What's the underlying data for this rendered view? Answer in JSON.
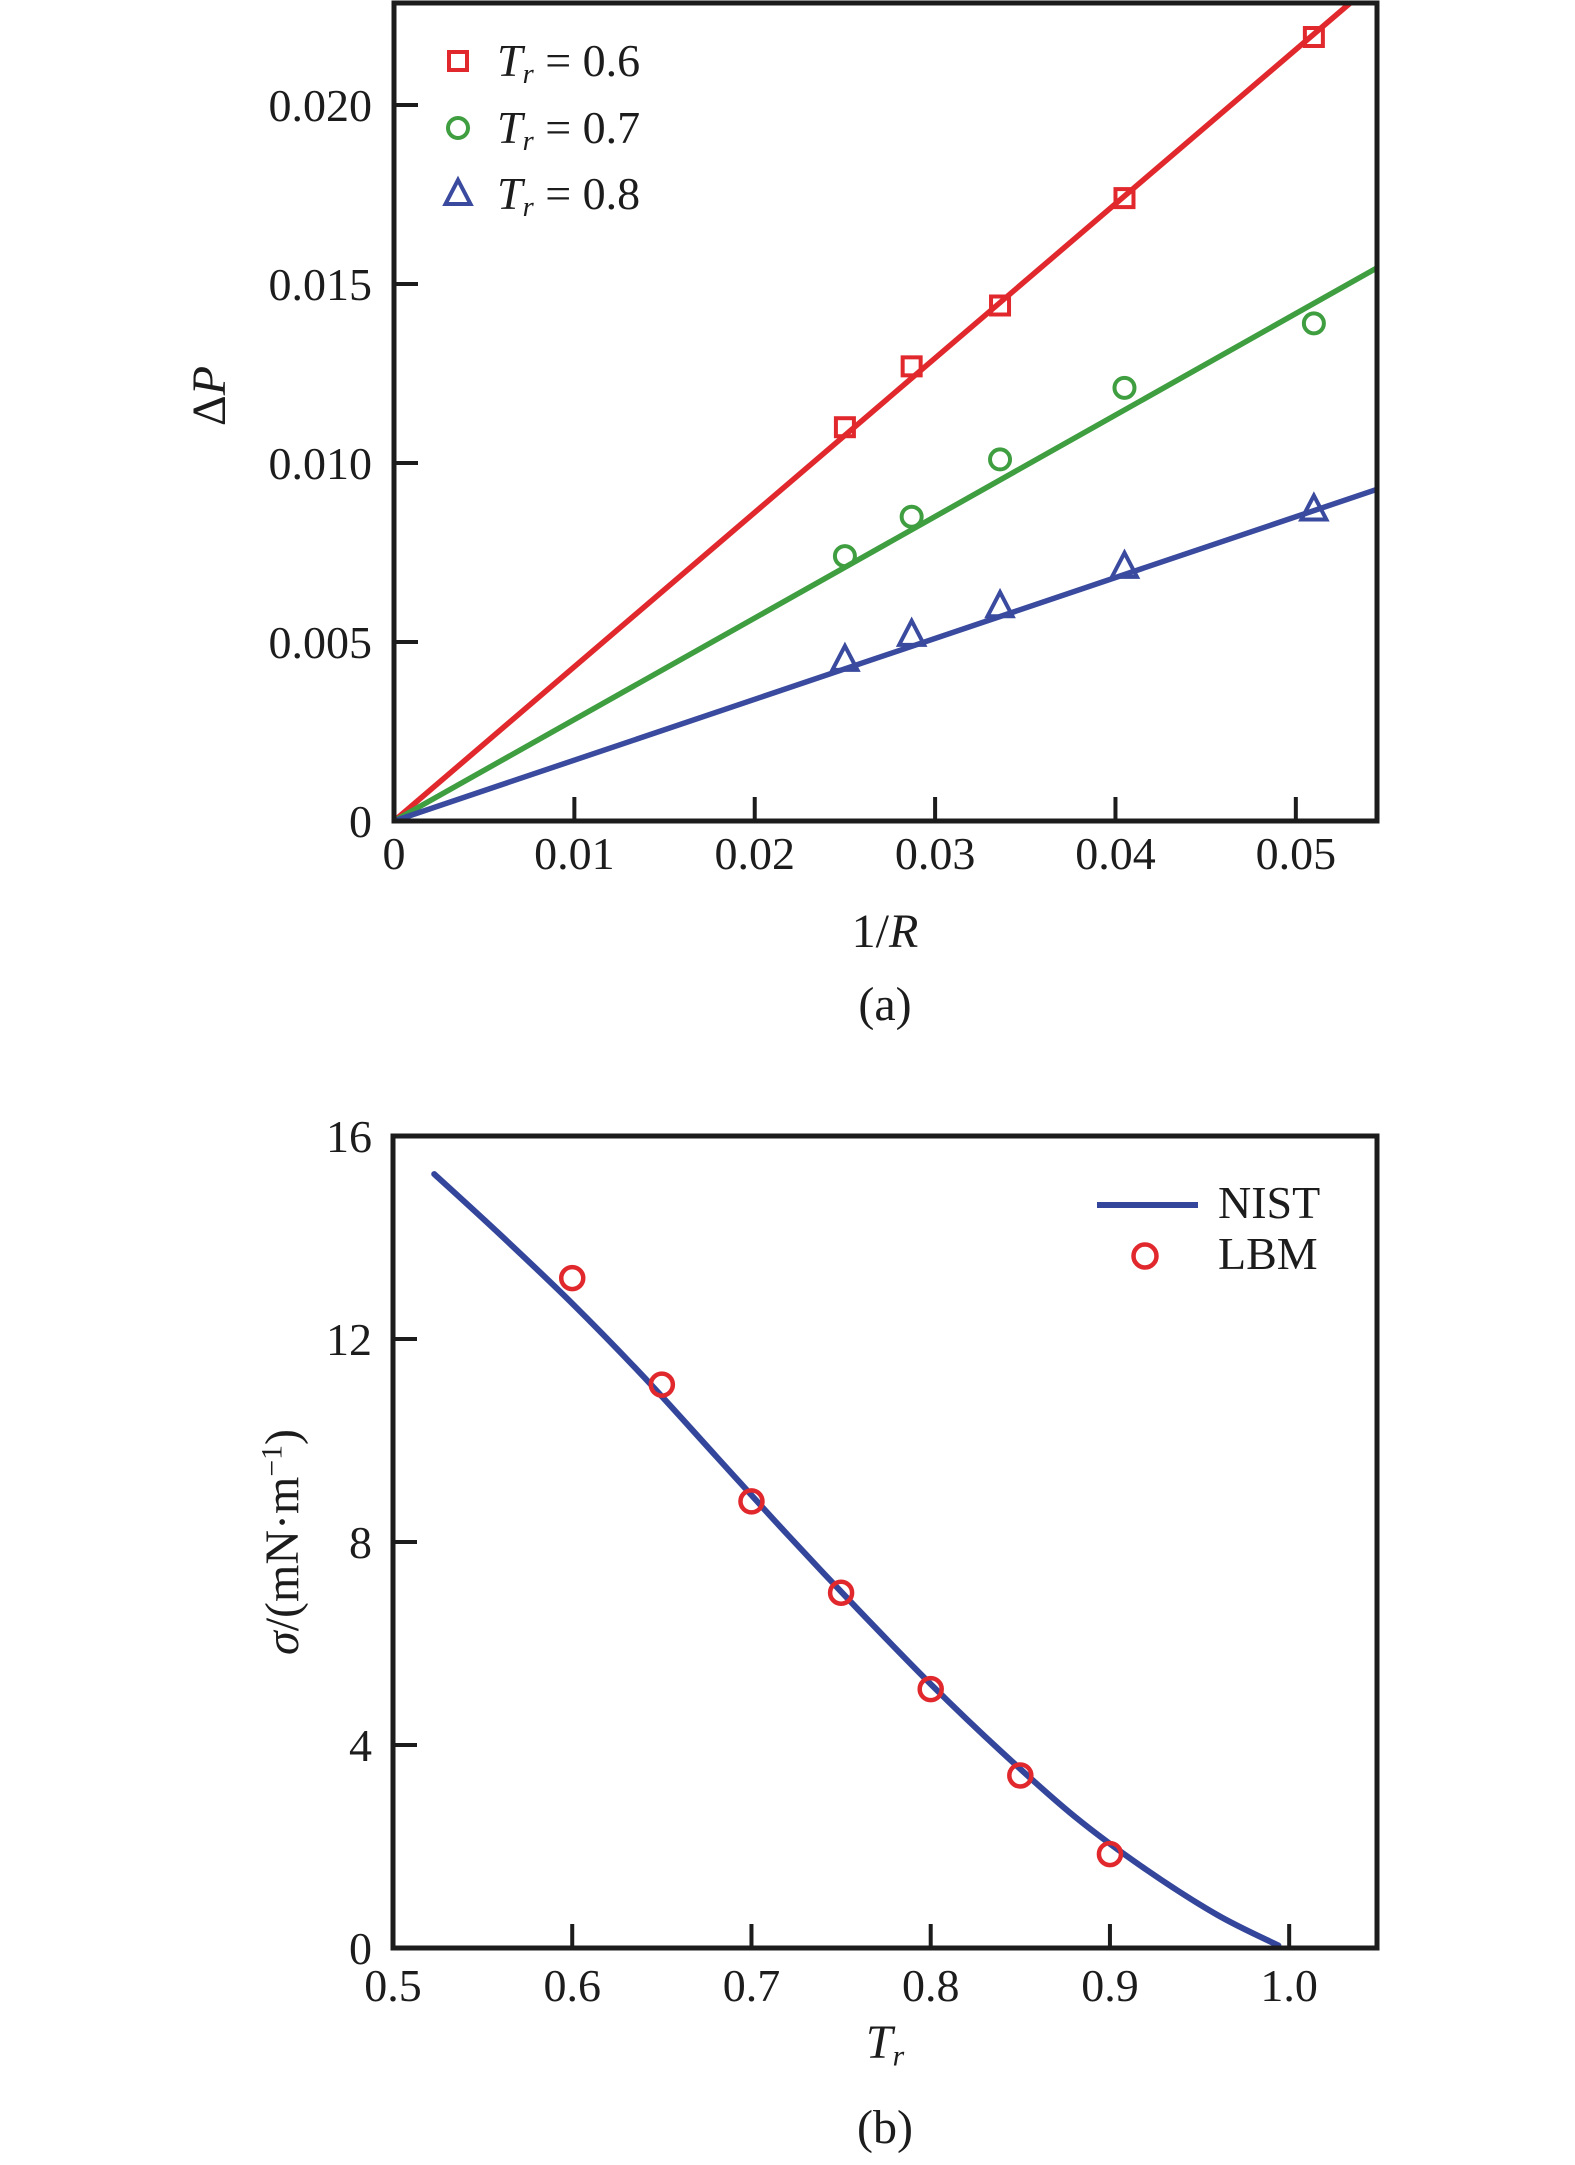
{
  "figure": {
    "background": "#ffffff",
    "text_color": "#1c1c1c",
    "axis_color": "#1c1c1c"
  },
  "chart_data": [
    {
      "id": "a",
      "type": "scatter",
      "caption": "(a)",
      "xlabel": "1/R",
      "xlabel_parts": {
        "plain": "1/",
        "italic": "R"
      },
      "ylabel": "ΔP",
      "ylabel_parts": {
        "plain": "Δ",
        "italic": "P"
      },
      "xlim": [
        0,
        0.0545
      ],
      "ylim": [
        0,
        0.02285
      ],
      "grid": false,
      "legend_position": "top-left",
      "xticks": {
        "values": [
          0,
          0.01,
          0.02,
          0.03,
          0.04,
          0.05
        ],
        "labels": [
          "0",
          "0.01",
          "0.02",
          "0.03",
          "0.04",
          "0.05"
        ]
      },
      "yticks": {
        "values": [
          0,
          0.005,
          0.01,
          0.015,
          0.02
        ],
        "labels": [
          "0",
          "0.005",
          "0.010",
          "0.015",
          "0.020"
        ]
      },
      "series": [
        {
          "label": "Tr = 0.6",
          "label_parts": {
            "it": "T",
            "sub": "r",
            "rest": " = 0.6"
          },
          "marker": "square",
          "color": "#e1282d",
          "points": [
            [
              0.025,
              0.011
            ],
            [
              0.0287,
              0.0127
            ],
            [
              0.0336,
              0.0144
            ],
            [
              0.0405,
              0.0174
            ],
            [
              0.051,
              0.0219
            ]
          ],
          "fit_line": {
            "through_origin": true,
            "slope": 0.431
          }
        },
        {
          "label": "Tr = 0.7",
          "label_parts": {
            "it": "T",
            "sub": "r",
            "rest": " = 0.7"
          },
          "marker": "circle",
          "color": "#3e9e40",
          "points": [
            [
              0.025,
              0.0074
            ],
            [
              0.0287,
              0.0085
            ],
            [
              0.0336,
              0.0101
            ],
            [
              0.0405,
              0.0121
            ],
            [
              0.051,
              0.0139
            ]
          ],
          "fit_line": {
            "through_origin": true,
            "slope": 0.2835
          }
        },
        {
          "label": "Tr = 0.8",
          "label_parts": {
            "it": "T",
            "sub": "r",
            "rest": " = 0.8"
          },
          "marker": "triangle",
          "color": "#3a4a9e",
          "points": [
            [
              0.025,
              0.0045
            ],
            [
              0.0287,
              0.0052
            ],
            [
              0.0336,
              0.006
            ],
            [
              0.0405,
              0.0071
            ],
            [
              0.051,
              0.0087
            ]
          ],
          "fit_line": {
            "through_origin": true,
            "slope": 0.17
          }
        }
      ]
    },
    {
      "id": "b",
      "type": "line+scatter",
      "caption": "(b)",
      "xlabel": "Tr",
      "xlabel_parts": {
        "it": "T",
        "sub": "r"
      },
      "ylabel": "σ/(mN·m−1)",
      "ylabel_parts": {
        "it": "σ",
        "mid": "/(mN·m",
        "sup": "−1",
        "tail": ")"
      },
      "xlim": [
        0.5,
        1.049
      ],
      "ylim": [
        0,
        16
      ],
      "grid": false,
      "legend_position": "top-right",
      "xticks": {
        "values": [
          0.5,
          0.6,
          0.7,
          0.8,
          0.9,
          1.0
        ],
        "labels": [
          "0.5",
          "0.6",
          "0.7",
          "0.8",
          "0.9",
          "1.0"
        ]
      },
      "yticks": {
        "values": [
          0,
          4,
          8,
          12,
          16
        ],
        "labels": [
          "0",
          "4",
          "8",
          "12",
          "16"
        ]
      },
      "series": [
        {
          "label": "NIST",
          "type": "line",
          "color": "#34469b",
          "points": [
            [
              0.523,
              15.25
            ],
            [
              0.56,
              14.05
            ],
            [
              0.6,
              12.7
            ],
            [
              0.64,
              11.25
            ],
            [
              0.68,
              9.7
            ],
            [
              0.72,
              8.15
            ],
            [
              0.76,
              6.65
            ],
            [
              0.8,
              5.2
            ],
            [
              0.84,
              3.85
            ],
            [
              0.88,
              2.6
            ],
            [
              0.92,
              1.55
            ],
            [
              0.96,
              0.65
            ],
            [
              0.994,
              0.05
            ]
          ]
        },
        {
          "label": "LBM",
          "type": "scatter",
          "marker": "circle",
          "color": "#e1282d",
          "points": [
            [
              0.6,
              13.2
            ],
            [
              0.65,
              11.1
            ],
            [
              0.7,
              8.8
            ],
            [
              0.75,
              7.0
            ],
            [
              0.8,
              5.1
            ],
            [
              0.85,
              3.4
            ],
            [
              0.9,
              1.85
            ]
          ]
        }
      ]
    }
  ]
}
